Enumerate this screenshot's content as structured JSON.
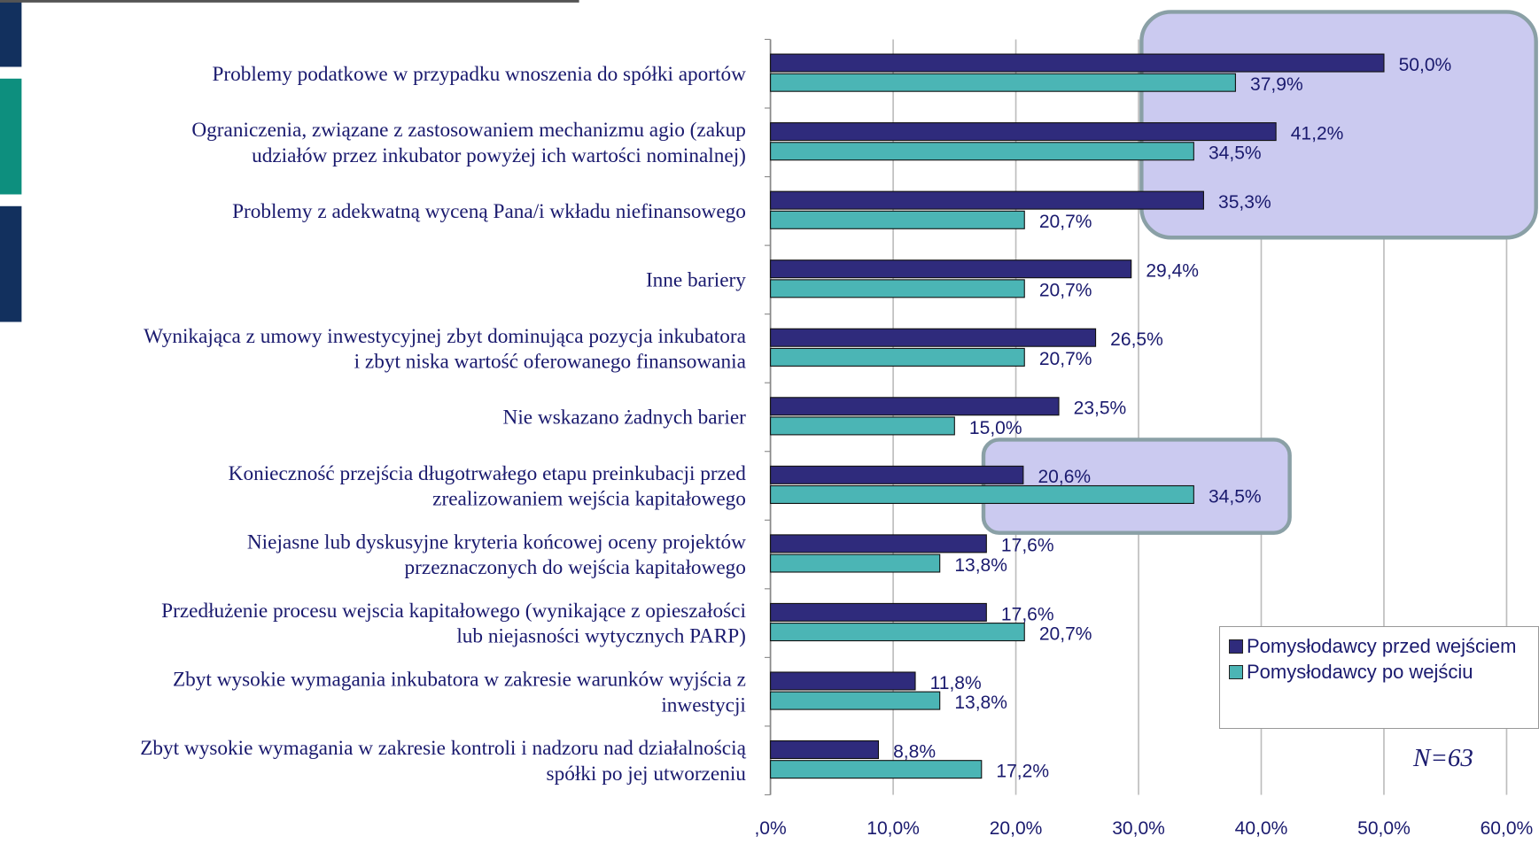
{
  "chart_data": {
    "type": "bar",
    "orientation": "horizontal",
    "categories": [
      [
        "Problemy podatkowe w przypadku wnoszenia do spółki aportów"
      ],
      [
        "Ograniczenia, związane z zastosowaniem mechanizmu agio (zakup",
        "udziałów przez inkubator powyżej ich wartości nominalnej)"
      ],
      [
        "Problemy z adekwatną wyceną Pana/i wkładu niefinansowego"
      ],
      [
        "Inne bariery"
      ],
      [
        "Wynikająca z umowy inwestycyjnej zbyt dominująca pozycja inkubatora",
        "i zbyt niska wartość oferowanego finansowania"
      ],
      [
        "Nie wskazano żadnych barier"
      ],
      [
        "Konieczność przejścia długotrwałego etapu preinkubacji przed",
        "zrealizowaniem wejścia kapitałowego"
      ],
      [
        "Niejasne lub dyskusyjne kryteria końcowej oceny projektów",
        "przeznaczonych do wejścia kapitałowego"
      ],
      [
        "Przedłużenie procesu wejscia kapitałowego (wynikające z opieszałości",
        "lub niejasności wytycznych PARP)"
      ],
      [
        "Zbyt wysokie wymagania inkubatora w zakresie warunków wyjścia z",
        "inwestycji"
      ],
      [
        "Zbyt wysokie wymagania w zakresie kontroli i nadzoru nad działalnością",
        "spółki po jej utworzeniu"
      ]
    ],
    "series": [
      {
        "name": "Pomysłodawcy przed wejściem",
        "color": "#2f2b7c",
        "values": [
          50.0,
          41.2,
          35.3,
          29.4,
          26.5,
          23.5,
          20.6,
          17.6,
          17.6,
          11.8,
          8.8
        ],
        "value_labels": [
          "50,0%",
          "41,2%",
          "35,3%",
          "29,4%",
          "26,5%",
          "23,5%",
          "20,6%",
          "17,6%",
          "17,6%",
          "11,8%",
          "8,8%"
        ]
      },
      {
        "name": "Pomysłodawcy po wejściu",
        "color": "#4bb5b5",
        "values": [
          37.9,
          34.5,
          20.7,
          20.7,
          20.7,
          15.0,
          34.5,
          13.8,
          20.7,
          13.8,
          17.2
        ],
        "value_labels": [
          "37,9%",
          "34,5%",
          "20,7%",
          "20,7%",
          "20,7%",
          "15,0%",
          "34,5%",
          "13,8%",
          "20,7%",
          "13,8%",
          "17,2%"
        ]
      }
    ],
    "xlim": [
      0,
      60
    ],
    "xticks": [
      {
        "value": 0,
        "label": ",0%"
      },
      {
        "value": 10,
        "label": "10,0%"
      },
      {
        "value": 20,
        "label": "20,0%"
      },
      {
        "value": 30,
        "label": "30,0%"
      },
      {
        "value": 40,
        "label": "40,0%"
      },
      {
        "value": 50,
        "label": "50,0%"
      },
      {
        "value": 60,
        "label": "60,0%"
      }
    ],
    "grid": true,
    "legend": "lower right",
    "annotation": "N=63"
  }
}
